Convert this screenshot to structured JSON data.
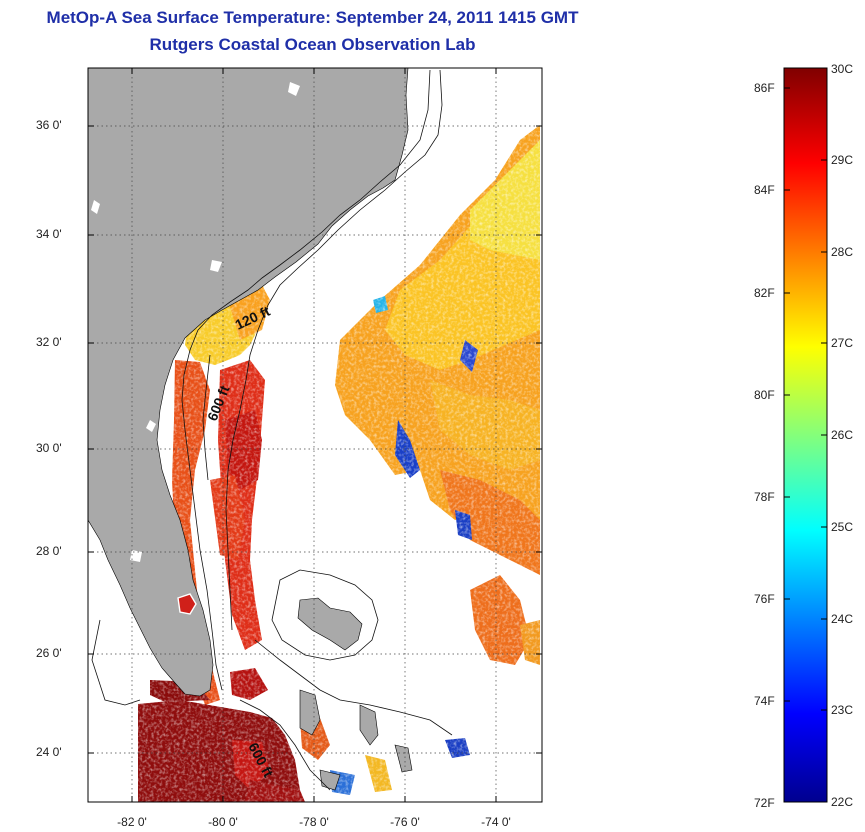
{
  "title": "MetOp-A Sea Surface Temperature:  September 24, 2011 1415 GMT",
  "subtitle": "Rutgers Coastal Ocean Observation Lab",
  "map": {
    "lat_labels": [
      "36 0'",
      "34 0'",
      "32 0'",
      "30 0'",
      "28 0'",
      "26 0'",
      "24 0'"
    ],
    "lon_labels": [
      "-82 0'",
      "-80 0'",
      "-78 0'",
      "-76 0'",
      "-74 0'"
    ],
    "contour_labels": [
      "120 ft",
      "600 ft",
      "600 ft"
    ]
  },
  "colorbar": {
    "fahrenheit_labels": [
      "86F",
      "84F",
      "82F",
      "80F",
      "78F",
      "76F",
      "74F",
      "72F"
    ],
    "celsius_labels": [
      "30C",
      "29C",
      "28C",
      "27C",
      "26C",
      "25C",
      "24C",
      "23C",
      "22C"
    ]
  },
  "colors": {
    "land": "#a9a9a9",
    "title": "#1f2fa8"
  }
}
